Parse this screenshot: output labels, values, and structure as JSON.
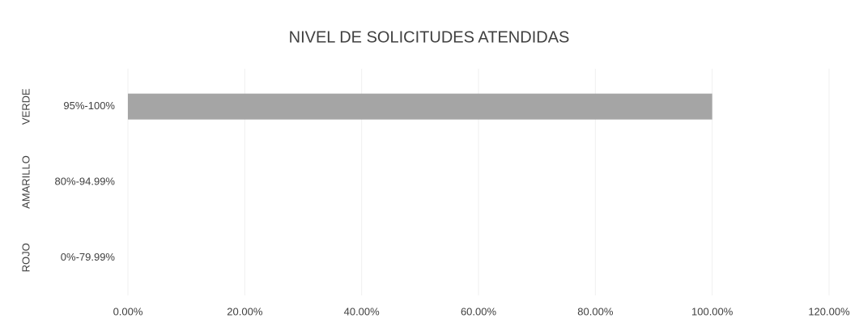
{
  "chart_data": {
    "type": "hbar",
    "title": "NIVEL DE SOLICITUDES ATENDIDAS",
    "category_groups": [
      "VERDE",
      "AMARILLO",
      "ROJO"
    ],
    "categories": [
      "95%-100%",
      "80%-94.99%",
      "0%-79.99%"
    ],
    "values": [
      100,
      0,
      0
    ],
    "color": "#a5a5a5",
    "xlim": [
      0,
      120
    ],
    "xticks": [
      {
        "value": 0,
        "label": "0.00%"
      },
      {
        "value": 20,
        "label": "20.00%"
      },
      {
        "value": 40,
        "label": "40.00%"
      },
      {
        "value": 60,
        "label": "60.00%"
      },
      {
        "value": 80,
        "label": "80.00%"
      },
      {
        "value": 100,
        "label": "100.00%"
      },
      {
        "value": 120,
        "label": "120.00%"
      }
    ],
    "grid": true
  }
}
